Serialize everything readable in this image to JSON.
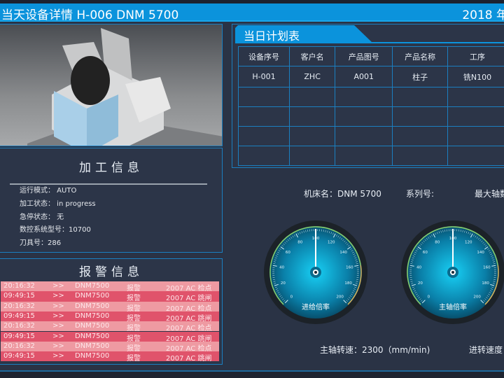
{
  "header": {
    "title": "当天设备详情  H-006   DNM 5700",
    "date": "2018 年"
  },
  "machine_image": {
    "label": "DNM 5700"
  },
  "processing": {
    "title": "加工信息",
    "rows": [
      "运行模式：  AUTO",
      "加工状态：  in progress",
      "急停状态：  无",
      "数控系统型号：10700",
      "刀具号：286"
    ]
  },
  "alarms": {
    "title": "报警信息",
    "rows": [
      {
        "time": "20:16:32",
        "sep": ">>",
        "machine": "DNM7500",
        "type": "报警",
        "msg": "2007  AC 检点"
      },
      {
        "time": "09:49:15",
        "sep": ">>",
        "machine": "DNM7500",
        "type": "报警",
        "msg": "2007  AC 跳闸"
      },
      {
        "time": "20:16:32",
        "sep": ">>",
        "machine": "DNM7500",
        "type": "报警",
        "msg": "2007  AC 检点"
      },
      {
        "time": "09:49:15",
        "sep": ">>",
        "machine": "DNM7500",
        "type": "报警",
        "msg": "2007  AC 跳闸"
      },
      {
        "time": "20:16:32",
        "sep": ">>",
        "machine": "DNM7500",
        "type": "报警",
        "msg": "2007  AC 检点"
      },
      {
        "time": "09:49:15",
        "sep": ">>",
        "machine": "DNM7500",
        "type": "报警",
        "msg": "2007  AC 跳闸"
      },
      {
        "time": "20:16:32",
        "sep": ">>",
        "machine": "DNM7500",
        "type": "报警",
        "msg": "2007  AC 检点"
      },
      {
        "time": "09:49:15",
        "sep": ">>",
        "machine": "DNM7500",
        "type": "报警",
        "msg": "2007  AC 跳闸"
      }
    ],
    "colors": {
      "light": "#ee9aa2",
      "dark": "#e0536b"
    }
  },
  "plan": {
    "title": "当日计划表",
    "columns": [
      "设备序号",
      "客户名",
      "产品图号",
      "产品名称",
      "工序"
    ],
    "rows": [
      [
        "H-001",
        "ZHC",
        "A001",
        "柱子",
        "铣N100"
      ],
      [
        "",
        "",
        "",
        "",
        ""
      ],
      [
        "",
        "",
        "",
        "",
        ""
      ],
      [
        "",
        "",
        "",
        "",
        ""
      ],
      [
        "",
        "",
        "",
        "",
        ""
      ]
    ]
  },
  "machine_info": {
    "name": "机床名：DNM 5700",
    "series": "系列号:",
    "max_axis": "最大轴数"
  },
  "gauges": [
    {
      "label": "进给倍率",
      "min": 0,
      "max": 200,
      "value": 100,
      "ticks": [
        0,
        20,
        40,
        60,
        80,
        100,
        120,
        140,
        160,
        180,
        200
      ]
    },
    {
      "label": "主轴倍率",
      "min": 0,
      "max": 200,
      "value": 100,
      "ticks": [
        0,
        20,
        40,
        60,
        80,
        100,
        120,
        140,
        160,
        180,
        200
      ]
    }
  ],
  "speeds": {
    "spindle": "主轴转速：2300（mm/min)",
    "feed": "进转速度"
  },
  "accent": "#0b93dc"
}
